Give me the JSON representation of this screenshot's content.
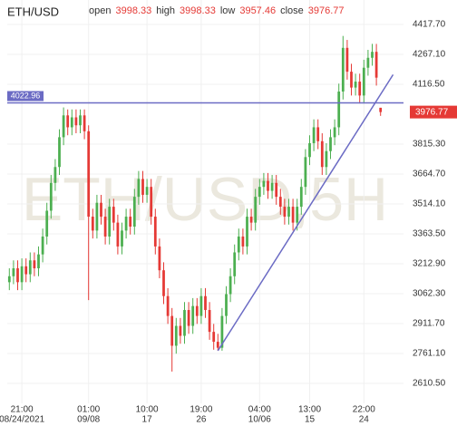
{
  "chart_data": {
    "type": "candlestick",
    "title": "ETH/USD",
    "watermark": "ETH/USD,5H",
    "ohlc_labels": [
      "open",
      "high",
      "low",
      "close"
    ],
    "up_color": "#4caf50",
    "down_color": "#e53935",
    "open": [
      3120,
      3150,
      3190,
      3120,
      3200,
      3160,
      3230,
      3190,
      3260,
      3350,
      3480,
      3620,
      3700,
      3850,
      3960,
      3900,
      3950,
      3910,
      3960,
      3880,
      3450,
      3380,
      3520,
      3450,
      3350,
      3500,
      3420,
      3300,
      3380,
      3450,
      3400,
      3550,
      3640,
      3560,
      3600,
      3450,
      3300,
      3180,
      3050,
      2950,
      2800,
      2900,
      2850,
      2980,
      2900,
      3000,
      2950,
      3050,
      2980,
      2870,
      2820,
      2790,
      2950,
      3060,
      3150,
      3270,
      3350,
      3300,
      3450,
      3420,
      3550,
      3600,
      3630,
      3580,
      3620,
      3550,
      3500,
      3450,
      3500,
      3420,
      3500,
      3600,
      3750,
      3820,
      3900,
      3830,
      3700,
      3780,
      3850,
      3900,
      4080,
      4300,
      4180,
      4100,
      4130,
      4060,
      4200,
      4250,
      4280,
      3998.33
    ],
    "high": [
      3190,
      3230,
      3230,
      3240,
      3240,
      3270,
      3270,
      3300,
      3390,
      3520,
      3660,
      3740,
      3890,
      4000,
      3990,
      3990,
      3990,
      3990,
      3990,
      3910,
      3490,
      3560,
      3560,
      3490,
      3540,
      3540,
      3460,
      3420,
      3490,
      3490,
      3590,
      3680,
      3680,
      3640,
      3640,
      3490,
      3340,
      3220,
      3090,
      2990,
      2940,
      2940,
      3020,
      3020,
      3040,
      3040,
      3090,
      3090,
      3020,
      2910,
      2860,
      2990,
      3100,
      3190,
      3310,
      3390,
      3390,
      3490,
      3490,
      3590,
      3640,
      3670,
      3670,
      3660,
      3660,
      3590,
      3540,
      3540,
      3540,
      3540,
      3640,
      3790,
      3860,
      3940,
      3940,
      3870,
      3820,
      3890,
      3940,
      4120,
      4360,
      4340,
      4220,
      4170,
      4170,
      4240,
      4290,
      4320,
      4320,
      3998.33
    ],
    "low": [
      3080,
      3110,
      3080,
      3080,
      3120,
      3120,
      3150,
      3150,
      3220,
      3310,
      3440,
      3580,
      3660,
      3810,
      3860,
      3860,
      3870,
      3870,
      3840,
      3030,
      3340,
      3340,
      3410,
      3310,
      3310,
      3380,
      3260,
      3260,
      3340,
      3360,
      3360,
      3510,
      3520,
      3520,
      3410,
      3260,
      3140,
      3010,
      2910,
      2670,
      2760,
      2810,
      2810,
      2860,
      2860,
      2910,
      2910,
      2940,
      2830,
      2780,
      2775,
      2775,
      2910,
      3020,
      3110,
      3230,
      3260,
      3260,
      3380,
      3380,
      3510,
      3560,
      3540,
      3540,
      3510,
      3460,
      3410,
      3410,
      3380,
      3380,
      3460,
      3560,
      3710,
      3780,
      3790,
      3660,
      3660,
      3740,
      3810,
      3860,
      4040,
      4140,
      4060,
      4060,
      4020,
      4020,
      4160,
      4210,
      4110,
      3957.46
    ],
    "close": [
      3150,
      3190,
      3120,
      3200,
      3160,
      3230,
      3190,
      3260,
      3350,
      3480,
      3620,
      3700,
      3850,
      3960,
      3900,
      3950,
      3910,
      3960,
      3880,
      3450,
      3380,
      3520,
      3450,
      3350,
      3500,
      3420,
      3300,
      3380,
      3450,
      3400,
      3550,
      3640,
      3560,
      3600,
      3450,
      3300,
      3180,
      3050,
      2950,
      2800,
      2900,
      2850,
      2980,
      2900,
      3000,
      2950,
      3050,
      2980,
      2870,
      2820,
      2790,
      2950,
      3060,
      3150,
      3270,
      3350,
      3300,
      3450,
      3420,
      3550,
      3600,
      3630,
      3580,
      3620,
      3550,
      3500,
      3450,
      3500,
      3420,
      3500,
      3600,
      3750,
      3820,
      3900,
      3830,
      3700,
      3780,
      3850,
      3900,
      4080,
      4300,
      4180,
      4100,
      4130,
      4060,
      4200,
      4250,
      4280,
      4150,
      3976.77
    ],
    "xlim": [
      -0.5,
      94.5
    ],
    "xticks": [
      {
        "value": 3,
        "label": "21:00"
      },
      {
        "value": 19,
        "label": "01:00"
      },
      {
        "value": 33,
        "label": "10:00"
      },
      {
        "value": 46,
        "label": "19:00"
      },
      {
        "value": 60,
        "label": "04:00"
      },
      {
        "value": 72,
        "label": "13:00"
      },
      {
        "value": 85,
        "label": "22:00"
      }
    ],
    "xtick_dates": [
      "08/24/2021",
      "09/08",
      "17",
      "26",
      "10/06",
      "15",
      "24"
    ],
    "ylim": [
      2510,
      4541
    ],
    "yticks": [
      {
        "value": 4417.7,
        "label": "4417.70"
      },
      {
        "value": 4267.1,
        "label": "4267.10"
      },
      {
        "value": 4116.5,
        "label": "4116.50"
      },
      {
        "value": 3815.3,
        "label": "3815.30"
      },
      {
        "value": 3664.7,
        "label": "3664.70"
      },
      {
        "value": 3514.1,
        "label": "3514.10"
      },
      {
        "value": 3363.5,
        "label": "3363.50"
      },
      {
        "value": 3212.9,
        "label": "3212.90"
      },
      {
        "value": 3062.3,
        "label": "3062.30"
      },
      {
        "value": 2911.7,
        "label": "2911.70"
      },
      {
        "value": 2761.1,
        "label": "2761.10"
      },
      {
        "value": 2610.5,
        "label": "2610.50"
      }
    ],
    "hline": {
      "value": 4022.96,
      "label": "4022.96",
      "color": "#6b6bc4"
    },
    "last_price": {
      "value": 3976.77,
      "label": "3976.77"
    },
    "trendline": {
      "x": [
        50,
        92
      ],
      "values": [
        2775,
        4165
      ],
      "color": "#6b6bc4"
    },
    "grid": true
  }
}
